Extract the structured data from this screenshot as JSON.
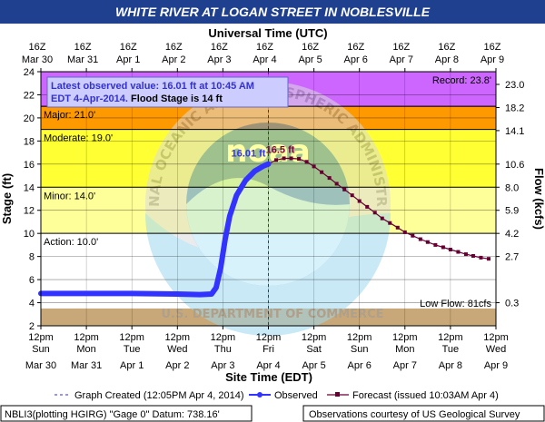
{
  "colors": {
    "title_bar": "#1f3f8f",
    "major": "#cc66ff",
    "major_band": "#c000c0",
    "moderate": "#ff0000",
    "moderate_band": "#ff9900",
    "minor_band": "#ffff33",
    "action_band": "#ffff99",
    "low_band": "#c8a878",
    "observed": "#3333ff",
    "forecast": "#660033",
    "annotation_box": "#ccccff",
    "annotation_text": "#3333cc",
    "obs_label": "#3333ff",
    "fcst_label": "#800040"
  },
  "chart_data": {
    "type": "line",
    "title": "WHITE RIVER AT LOGAN STREET IN NOBLESVILLE",
    "top_axis_title": "Universal Time (UTC)",
    "xlabel": "Site Time (EDT)",
    "ylabel": "Stage (ft)",
    "y2label": "Flow (kcfs)",
    "ylim": [
      2,
      24
    ],
    "yticks": [
      2,
      4,
      6,
      8,
      10,
      12,
      14,
      16,
      18,
      20,
      22,
      24
    ],
    "xlim_days": [
      0,
      10
    ],
    "top_ticks": [
      {
        "t": "16Z",
        "d": "Mar 30"
      },
      {
        "t": "16Z",
        "d": "Mar 31"
      },
      {
        "t": "16Z",
        "d": "Apr 1"
      },
      {
        "t": "16Z",
        "d": "Apr 2"
      },
      {
        "t": "16Z",
        "d": "Apr 3"
      },
      {
        "t": "16Z",
        "d": "Apr 4"
      },
      {
        "t": "16Z",
        "d": "Apr 5"
      },
      {
        "t": "16Z",
        "d": "Apr 6"
      },
      {
        "t": "16Z",
        "d": "Apr 7"
      },
      {
        "t": "16Z",
        "d": "Apr 8"
      },
      {
        "t": "16Z",
        "d": "Apr 9"
      }
    ],
    "bottom_ticks": [
      {
        "t": "12pm",
        "w": "Sun",
        "d": "Mar 30"
      },
      {
        "t": "12pm",
        "w": "Mon",
        "d": "Mar 31"
      },
      {
        "t": "12pm",
        "w": "Tue",
        "d": "Apr 1"
      },
      {
        "t": "12pm",
        "w": "Wed",
        "d": "Apr 2"
      },
      {
        "t": "12pm",
        "w": "Thu",
        "d": "Apr 3"
      },
      {
        "t": "12pm",
        "w": "Fri",
        "d": "Apr 4"
      },
      {
        "t": "12pm",
        "w": "Sat",
        "d": "Apr 5"
      },
      {
        "t": "12pm",
        "w": "Sun",
        "d": "Apr 6"
      },
      {
        "t": "12pm",
        "w": "Mon",
        "d": "Apr 7"
      },
      {
        "t": "12pm",
        "w": "Tue",
        "d": "Apr 8"
      },
      {
        "t": "12pm",
        "w": "Wed",
        "d": "Apr 9"
      }
    ],
    "flow_ticks": [
      {
        "stage": 22.9,
        "label": "23.0"
      },
      {
        "stage": 20.9,
        "label": "18.2"
      },
      {
        "stage": 18.9,
        "label": "14.1"
      },
      {
        "stage": 16.0,
        "label": "10.6"
      },
      {
        "stage": 14.0,
        "label": "8.0"
      },
      {
        "stage": 12.0,
        "label": "5.9"
      },
      {
        "stage": 10.0,
        "label": "4.2"
      },
      {
        "stage": 8.0,
        "label": "2.7"
      },
      {
        "stage": 4.0,
        "label": "0.3"
      }
    ],
    "flood_bands": [
      {
        "name": "major",
        "from": 21,
        "to": 24
      },
      {
        "name": "moderate",
        "from": 19,
        "to": 21
      },
      {
        "name": "minor",
        "from": 14,
        "to": 19
      },
      {
        "name": "action",
        "from": 10,
        "to": 14
      },
      {
        "name": "low",
        "from": 2,
        "to": 3.5
      }
    ],
    "stage_labels": [
      {
        "text": "Major: 21.0'",
        "stage": 21.0
      },
      {
        "text": "Moderate: 19.0'",
        "stage": 19.0
      },
      {
        "text": "Minor: 14.0'",
        "stage": 14.0
      },
      {
        "text": "Action: 10.0'",
        "stage": 10.0
      }
    ],
    "record_label": "Record: 23.8'",
    "low_flow_label": "Low Flow: 81cfs",
    "observed": [
      [
        0.0,
        4.8
      ],
      [
        1.0,
        4.8
      ],
      [
        2.0,
        4.8
      ],
      [
        3.0,
        4.75
      ],
      [
        3.5,
        4.7
      ],
      [
        3.75,
        4.75
      ],
      [
        3.85,
        5.3
      ],
      [
        3.95,
        7.0
      ],
      [
        4.05,
        9.5
      ],
      [
        4.15,
        11.5
      ],
      [
        4.3,
        13.3
      ],
      [
        4.5,
        14.6
      ],
      [
        4.7,
        15.4
      ],
      [
        4.9,
        15.85
      ],
      [
        5.0,
        16.01
      ]
    ],
    "forecast": [
      [
        5.0,
        16.01
      ],
      [
        5.17,
        16.35
      ],
      [
        5.34,
        16.5
      ],
      [
        5.5,
        16.5
      ],
      [
        5.67,
        16.45
      ],
      [
        5.84,
        16.2
      ],
      [
        6.0,
        15.8
      ],
      [
        6.17,
        15.3
      ],
      [
        6.34,
        14.8
      ],
      [
        6.5,
        14.3
      ],
      [
        6.67,
        13.8
      ],
      [
        6.84,
        13.3
      ],
      [
        7.0,
        12.8
      ],
      [
        7.17,
        12.3
      ],
      [
        7.34,
        11.8
      ],
      [
        7.5,
        11.3
      ],
      [
        7.67,
        10.9
      ],
      [
        7.84,
        10.5
      ],
      [
        8.0,
        10.1
      ],
      [
        8.17,
        9.8
      ],
      [
        8.34,
        9.5
      ],
      [
        8.5,
        9.25
      ],
      [
        8.67,
        9.0
      ],
      [
        8.84,
        8.8
      ],
      [
        9.0,
        8.6
      ],
      [
        9.17,
        8.4
      ],
      [
        9.34,
        8.2
      ],
      [
        9.5,
        8.05
      ],
      [
        9.67,
        7.9
      ],
      [
        9.84,
        7.8
      ]
    ],
    "observed_label": "16.01 ft",
    "forecast_label": "16.5 ft",
    "created_line_day": 5.0,
    "annotation": {
      "line1": "Latest observed value: 16.01 ft at 10:45 AM",
      "line2_a": "EDT 4-Apr-2014.",
      "line2_b": " Flood Stage is 14 ft"
    },
    "legend": {
      "created": "Graph Created (12:05PM Apr 4, 2014)",
      "observed": "Observed",
      "forecast": "Forecast (issued 10:03AM Apr 4)"
    }
  },
  "footer": {
    "left": "NBLI3(plotting HGIRG) \"Gage 0\" Datum: 738.16'",
    "right": "Observations courtesy of US Geological Survey"
  },
  "watermark": {
    "ring_text": "NATIONAL OCEANIC AND ATMOSPHERIC ADMINISTRATION",
    "bottom_text": "U.S. DEPARTMENT OF COMMERCE",
    "center": "noaa"
  }
}
